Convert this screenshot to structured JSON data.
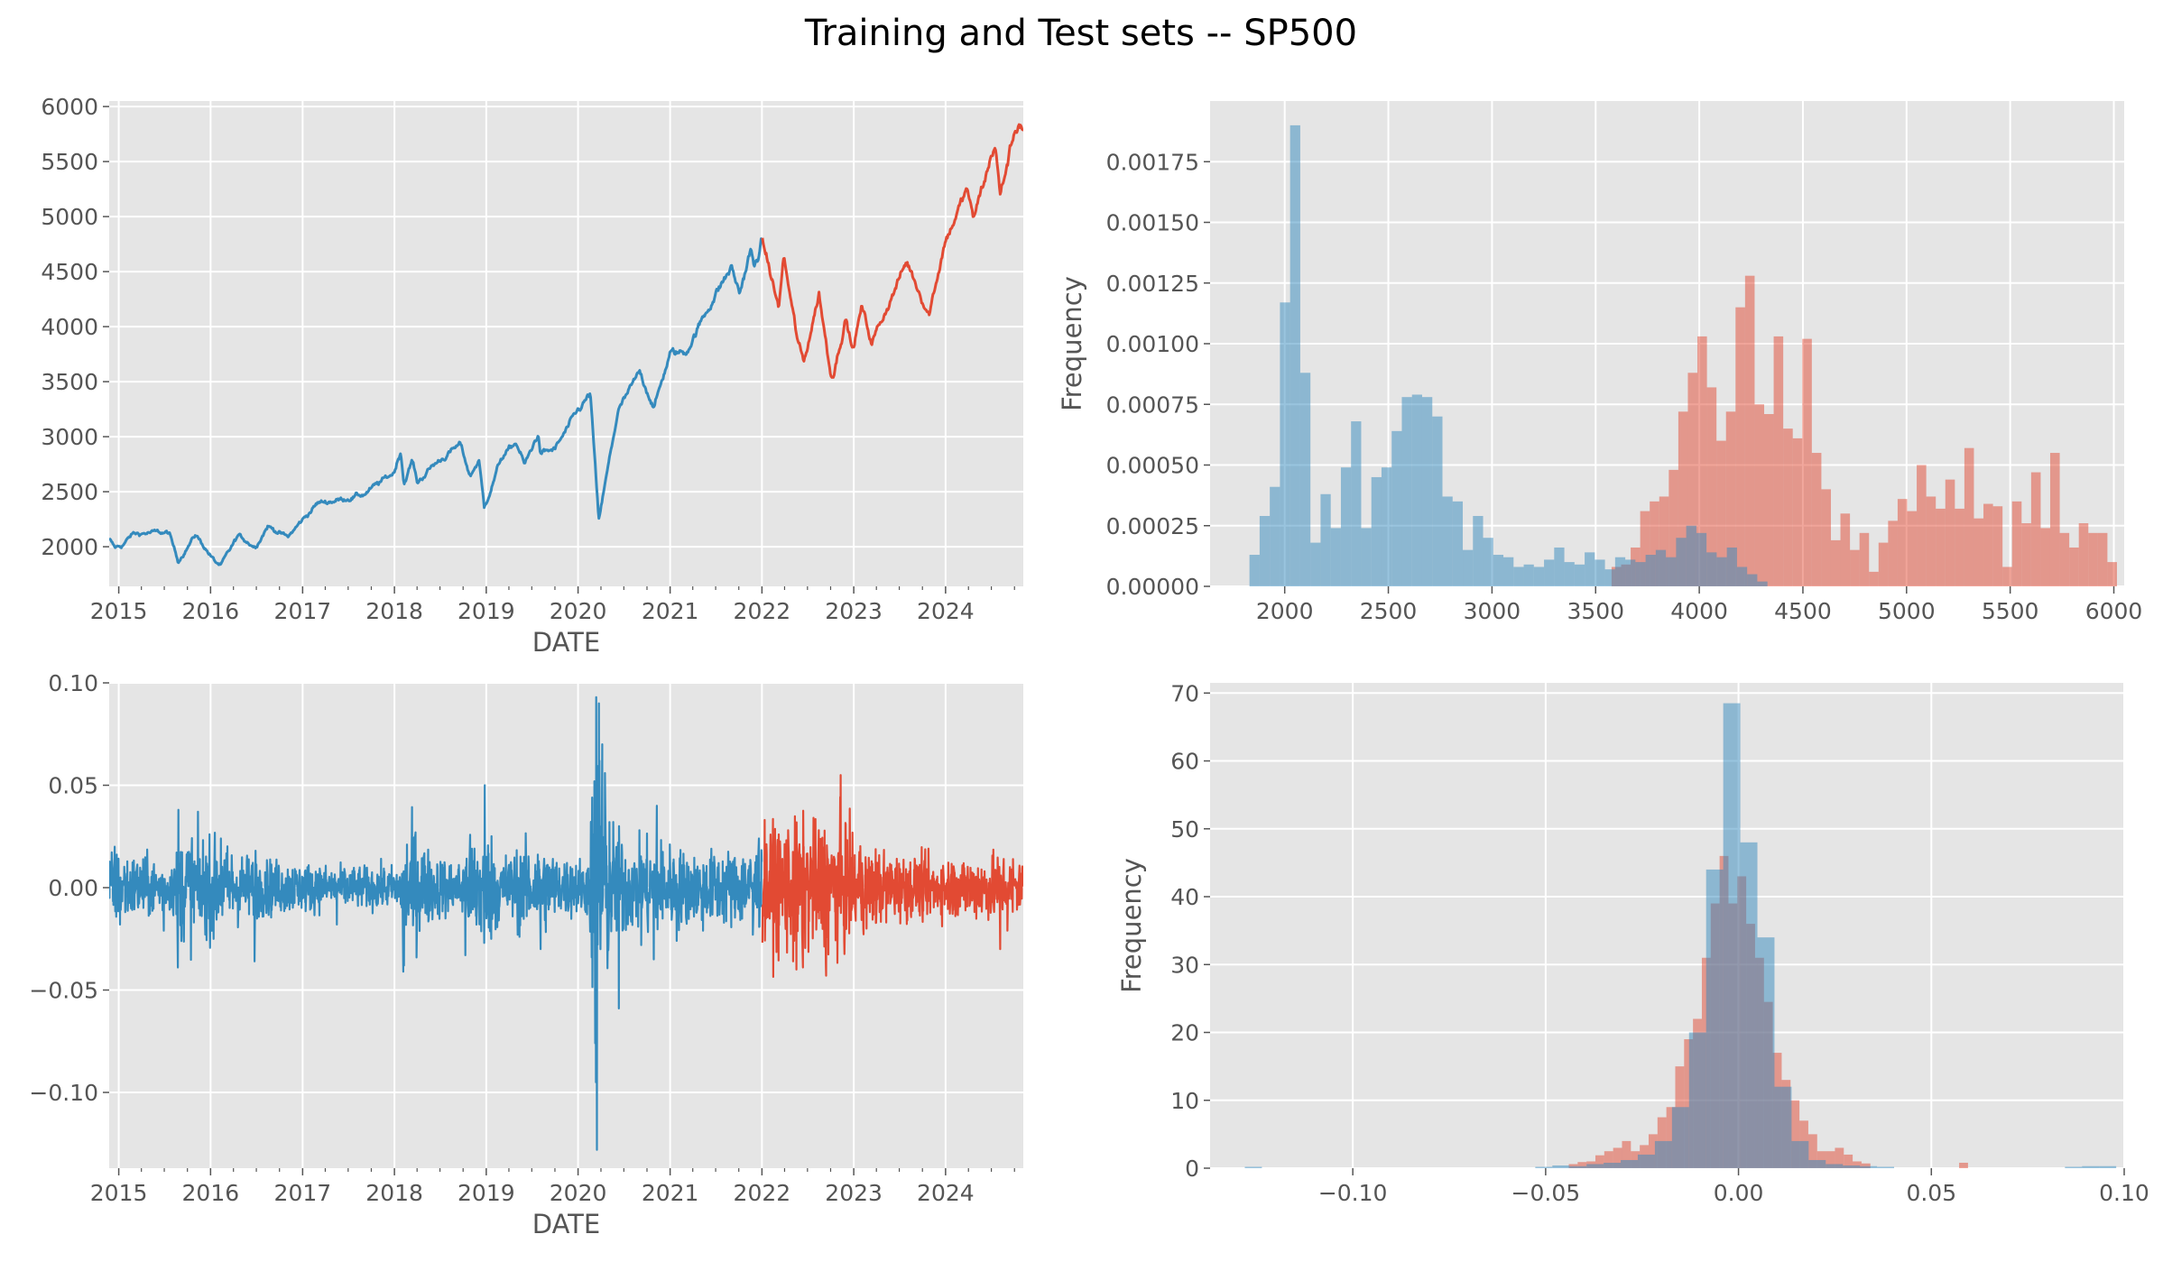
{
  "figure": {
    "title": "Training and Test sets -- SP500",
    "colors": {
      "train": "#348ABD",
      "test": "#E24A33",
      "panel_bg": "#E5E5E5",
      "grid": "#FFFFFF",
      "text": "#555555"
    }
  },
  "chart_data": [
    {
      "id": "price-series",
      "type": "line",
      "xlabel": "DATE",
      "ylabel": "",
      "x_tick_labels": [
        "2015",
        "2016",
        "2017",
        "2018",
        "2019",
        "2020",
        "2021",
        "2022",
        "2023",
        "2024"
      ],
      "xlim": [
        "2014-11-24",
        "2024-11-05"
      ],
      "y_ticks": [
        2000,
        2500,
        3000,
        3500,
        4000,
        4500,
        5000,
        5500,
        6000
      ],
      "ylim": [
        1640,
        6050
      ],
      "grid": true,
      "series": [
        {
          "role": "train",
          "color": "#348ABD",
          "points": [
            [
              "2014-11-24",
              2069
            ],
            [
              "2014-12-16",
              1990
            ],
            [
              "2015-01-15",
              2012
            ],
            [
              "2015-02-25",
              2115
            ],
            [
              "2015-05-20",
              2130
            ],
            [
              "2015-07-20",
              2125
            ],
            [
              "2015-08-25",
              1868
            ],
            [
              "2015-11-03",
              2110
            ],
            [
              "2016-01-20",
              1859
            ],
            [
              "2016-02-11",
              1829
            ],
            [
              "2016-04-20",
              2100
            ],
            [
              "2016-06-27",
              2000
            ],
            [
              "2016-08-15",
              2190
            ],
            [
              "2016-11-03",
              2085
            ],
            [
              "2016-12-30",
              2240
            ],
            [
              "2017-03-01",
              2395
            ],
            [
              "2017-06-01",
              2430
            ],
            [
              "2017-09-01",
              2475
            ],
            [
              "2017-12-29",
              2673
            ],
            [
              "2018-01-26",
              2872
            ],
            [
              "2018-02-08",
              2581
            ],
            [
              "2018-03-13",
              2783
            ],
            [
              "2018-04-02",
              2581
            ],
            [
              "2018-06-01",
              2734
            ],
            [
              "2018-09-20",
              2930
            ],
            [
              "2018-10-29",
              2641
            ],
            [
              "2018-12-03",
              2790
            ],
            [
              "2018-12-24",
              2351
            ],
            [
              "2019-03-01",
              2803
            ],
            [
              "2019-04-30",
              2945
            ],
            [
              "2019-06-03",
              2744
            ],
            [
              "2019-07-26",
              3025
            ],
            [
              "2019-08-05",
              2844
            ],
            [
              "2019-10-02",
              2887
            ],
            [
              "2019-12-31",
              3230
            ],
            [
              "2020-02-19",
              3386
            ],
            [
              "2020-03-23",
              2237
            ],
            [
              "2020-06-08",
              3232
            ],
            [
              "2020-09-02",
              3580
            ],
            [
              "2020-10-30",
              3270
            ],
            [
              "2020-12-31",
              3756
            ],
            [
              "2021-03-04",
              3768
            ],
            [
              "2021-06-30",
              4297
            ],
            [
              "2021-09-02",
              4537
            ],
            [
              "2021-10-04",
              4300
            ],
            [
              "2021-11-18",
              4704
            ],
            [
              "2021-12-01",
              4513
            ],
            [
              "2021-12-31",
              4766
            ]
          ]
        },
        {
          "role": "test",
          "color": "#E24A33",
          "points": [
            [
              "2022-01-03",
              4796
            ],
            [
              "2022-03-08",
              4170
            ],
            [
              "2022-03-29",
              4631
            ],
            [
              "2022-05-20",
              3901
            ],
            [
              "2022-06-16",
              3666
            ],
            [
              "2022-08-16",
              4305
            ],
            [
              "2022-09-30",
              3586
            ],
            [
              "2022-10-12",
              3577
            ],
            [
              "2022-11-30",
              4080
            ],
            [
              "2022-12-28",
              3783
            ],
            [
              "2023-02-02",
              4179
            ],
            [
              "2023-03-13",
              3855
            ],
            [
              "2023-07-31",
              4589
            ],
            [
              "2023-10-27",
              4117
            ],
            [
              "2023-12-29",
              4770
            ],
            [
              "2024-03-28",
              5254
            ],
            [
              "2024-04-19",
              4967
            ],
            [
              "2024-07-16",
              5667
            ],
            [
              "2024-08-05",
              5186
            ],
            [
              "2024-09-30",
              5762
            ],
            [
              "2024-10-18",
              5864
            ],
            [
              "2024-11-05",
              5800
            ]
          ]
        }
      ]
    },
    {
      "id": "price-histogram",
      "type": "histogram",
      "xlabel": "",
      "ylabel": "Frequency",
      "x_ticks": [
        2000,
        2500,
        3000,
        3500,
        4000,
        4500,
        5000,
        5500,
        6000
      ],
      "y_ticks": [
        "0.00000",
        "0.00025",
        "0.00050",
        "0.00075",
        "0.00100",
        "0.00125",
        "0.00150",
        "0.00175"
      ],
      "xlim": [
        1640,
        6050
      ],
      "ylim": [
        0,
        0.002
      ],
      "grid": true,
      "series": [
        {
          "role": "train",
          "color": "#348ABD",
          "opacity": 0.5,
          "bin_start": 1830,
          "bin_width": 49,
          "values": [
            0.00013,
            0.00029,
            0.00041,
            0.00117,
            0.0019,
            0.00088,
            0.00018,
            0.00038,
            0.00024,
            0.00049,
            0.00068,
            0.00024,
            0.00045,
            0.00049,
            0.00064,
            0.00078,
            0.00079,
            0.00078,
            0.0007,
            0.00037,
            0.00035,
            0.00015,
            0.00029,
            0.0002,
            0.00013,
            0.00012,
            8e-05,
            9e-05,
            8e-05,
            0.00011,
            0.00016,
            0.0001,
            9e-05,
            0.00014,
            0.00011,
            7e-05,
            0.00012,
            0.00011,
            0.0001,
            0.00013,
            0.00015,
            0.00012,
            0.0002,
            0.00025,
            0.00022,
            0.00014,
            0.00012,
            0.00016,
            8e-05,
            5e-05,
            2e-05
          ]
        },
        {
          "role": "test",
          "color": "#E24A33",
          "opacity": 0.5,
          "bin_start": 3577,
          "bin_width": 46,
          "values": [
            8e-05,
            9e-05,
            0.00016,
            0.00031,
            0.00035,
            0.00037,
            0.00048,
            0.00072,
            0.00088,
            0.00103,
            0.00082,
            0.0006,
            0.00072,
            0.00115,
            0.00128,
            0.00075,
            0.00071,
            0.00103,
            0.00065,
            0.00061,
            0.00102,
            0.00055,
            0.0004,
            0.00019,
            0.0003,
            0.00015,
            0.00022,
            6e-05,
            0.00018,
            0.00027,
            0.00036,
            0.00031,
            0.0005,
            0.00037,
            0.00032,
            0.00044,
            0.00032,
            0.00057,
            0.00028,
            0.00034,
            0.00033,
            8e-05,
            0.00035,
            0.00026,
            0.00047,
            0.00024,
            0.00055,
            0.00022,
            0.00016,
            0.00026,
            0.00022,
            0.00022,
            0.0001
          ]
        }
      ]
    },
    {
      "id": "returns-series",
      "type": "line",
      "xlabel": "DATE",
      "ylabel": "",
      "x_tick_labels": [
        "2015",
        "2016",
        "2017",
        "2018",
        "2019",
        "2020",
        "2021",
        "2022",
        "2023",
        "2024"
      ],
      "xlim": [
        "2014-11-24",
        "2024-11-05"
      ],
      "y_ticks": [
        "−0.10",
        "−0.05",
        "0.00",
        "0.05",
        "0.10"
      ],
      "ylim": [
        -0.137,
        0.1
      ],
      "grid": true,
      "series": [
        {
          "role": "train",
          "color": "#348ABD",
          "band_sigma": [
            [
              "2014-11-24",
              0.009
            ],
            [
              "2015-08-01",
              0.006
            ],
            [
              "2015-09-20",
              0.014
            ],
            [
              "2016-03-01",
              0.01
            ],
            [
              "2016-07-01",
              0.007
            ],
            [
              "2017-06-01",
              0.005
            ],
            [
              "2018-01-20",
              0.005
            ],
            [
              "2018-02-25",
              0.015
            ],
            [
              "2018-06-01",
              0.008
            ],
            [
              "2018-09-15",
              0.006
            ],
            [
              "2018-11-15",
              0.014
            ],
            [
              "2019-01-20",
              0.013
            ],
            [
              "2019-03-01",
              0.008
            ],
            [
              "2019-08-15",
              0.011
            ],
            [
              "2019-10-15",
              0.007
            ],
            [
              "2020-02-15",
              0.007
            ],
            [
              "2020-03-05",
              0.04
            ],
            [
              "2020-04-10",
              0.028
            ],
            [
              "2020-05-15",
              0.016
            ],
            [
              "2020-08-01",
              0.01
            ],
            [
              "2020-11-01",
              0.012
            ],
            [
              "2021-04-01",
              0.008
            ],
            [
              "2021-12-31",
              0.01
            ]
          ],
          "spikes": [
            [
              "2014-12-16",
              0.02
            ],
            [
              "2015-01-06",
              -0.018
            ],
            [
              "2015-06-29",
              -0.021
            ],
            [
              "2015-08-24",
              -0.039
            ],
            [
              "2015-08-26",
              0.038
            ],
            [
              "2016-01-13",
              -0.025
            ],
            [
              "2016-02-11",
              0.024
            ],
            [
              "2016-06-24",
              -0.036
            ],
            [
              "2016-06-28",
              0.018
            ],
            [
              "2017-05-17",
              -0.018
            ],
            [
              "2018-02-05",
              -0.041
            ],
            [
              "2018-02-08",
              -0.038
            ],
            [
              "2018-03-26",
              0.027
            ],
            [
              "2018-10-10",
              -0.033
            ],
            [
              "2018-12-24",
              -0.027
            ],
            [
              "2018-12-26",
              0.05
            ],
            [
              "2019-05-13",
              -0.024
            ],
            [
              "2019-08-05",
              -0.03
            ],
            [
              "2020-02-24",
              -0.034
            ],
            [
              "2020-03-09",
              -0.076
            ],
            [
              "2020-03-12",
              -0.095
            ],
            [
              "2020-03-16",
              -0.128
            ],
            [
              "2020-03-13",
              0.093
            ],
            [
              "2020-03-24",
              0.09
            ],
            [
              "2020-03-26",
              0.062
            ],
            [
              "2020-04-06",
              0.07
            ],
            [
              "2020-06-11",
              -0.059
            ],
            [
              "2020-09-08",
              -0.028
            ],
            [
              "2020-10-28",
              -0.035
            ],
            [
              "2020-11-09",
              0.04
            ],
            [
              "2021-01-27",
              -0.026
            ],
            [
              "2021-05-12",
              -0.021
            ],
            [
              "2021-11-26",
              -0.023
            ],
            [
              "2021-12-20",
              0.024
            ]
          ]
        },
        {
          "role": "test",
          "color": "#E24A33",
          "band_sigma": [
            [
              "2022-01-03",
              0.013
            ],
            [
              "2022-04-01",
              0.016
            ],
            [
              "2022-07-01",
              0.015
            ],
            [
              "2022-10-15",
              0.017
            ],
            [
              "2023-01-15",
              0.011
            ],
            [
              "2023-06-01",
              0.008
            ],
            [
              "2023-12-01",
              0.007
            ],
            [
              "2024-06-01",
              0.008
            ],
            [
              "2024-11-05",
              0.008
            ]
          ],
          "spikes": [
            [
              "2022-03-09",
              0.026
            ],
            [
              "2022-05-05",
              -0.036
            ],
            [
              "2022-05-18",
              -0.04
            ],
            [
              "2022-06-13",
              -0.039
            ],
            [
              "2022-09-13",
              -0.043
            ],
            [
              "2022-11-10",
              0.055
            ],
            [
              "2022-11-30",
              0.031
            ],
            [
              "2023-02-21",
              -0.02
            ],
            [
              "2024-08-05",
              -0.03
            ],
            [
              "2024-09-03",
              -0.021
            ]
          ]
        }
      ]
    },
    {
      "id": "returns-histogram",
      "type": "histogram",
      "xlabel": "",
      "ylabel": "Frequency",
      "x_ticks": [
        "−0.10",
        "−0.05",
        "0.00",
        "0.05",
        "0.10"
      ],
      "x_tick_values": [
        -0.1,
        -0.05,
        0.0,
        0.05,
        0.1
      ],
      "y_ticks": [
        0,
        10,
        20,
        30,
        40,
        50,
        60,
        70
      ],
      "xlim": [
        -0.137,
        0.1
      ],
      "ylim": [
        0,
        71.5
      ],
      "grid": true,
      "series": [
        {
          "role": "train",
          "color": "#348ABD",
          "opacity": 0.5,
          "bin_start": -0.128,
          "bin_width": 0.00443,
          "values": [
            0.2,
            0,
            0,
            0,
            0,
            0,
            0,
            0,
            0,
            0,
            0,
            0,
            0,
            0,
            0,
            0,
            0,
            0.2,
            0.4,
            0.3,
            0.6,
            0.8,
            1.2,
            2.0,
            4.0,
            9.0,
            20.0,
            44.0,
            68.5,
            48.0,
            34.0,
            12.0,
            4.0,
            1.2,
            0.6,
            0.4,
            0.3,
            0.2,
            0,
            0,
            0,
            0,
            0,
            0,
            0,
            0,
            0,
            0,
            0.2,
            0.3,
            0.3,
            0,
            0.2
          ]
        },
        {
          "role": "test",
          "color": "#E24A33",
          "opacity": 0.5,
          "bin_start": -0.044,
          "bin_width": 0.0023,
          "values": [
            0.6,
            0.9,
            1.0,
            1.9,
            2.5,
            3.0,
            4.0,
            2.5,
            3.4,
            5.0,
            7.5,
            9.0,
            15.0,
            19.0,
            22.0,
            31.0,
            39.0,
            46.0,
            39.0,
            43.0,
            36.0,
            31.0,
            24.5,
            17.0,
            13.0,
            10.0,
            7.0,
            5.0,
            2.5,
            2.5,
            3.0,
            2.0,
            1.0,
            0.7,
            0,
            0,
            0,
            0,
            0,
            0,
            0,
            0,
            0,
            0,
            0.8
          ]
        }
      ]
    }
  ]
}
